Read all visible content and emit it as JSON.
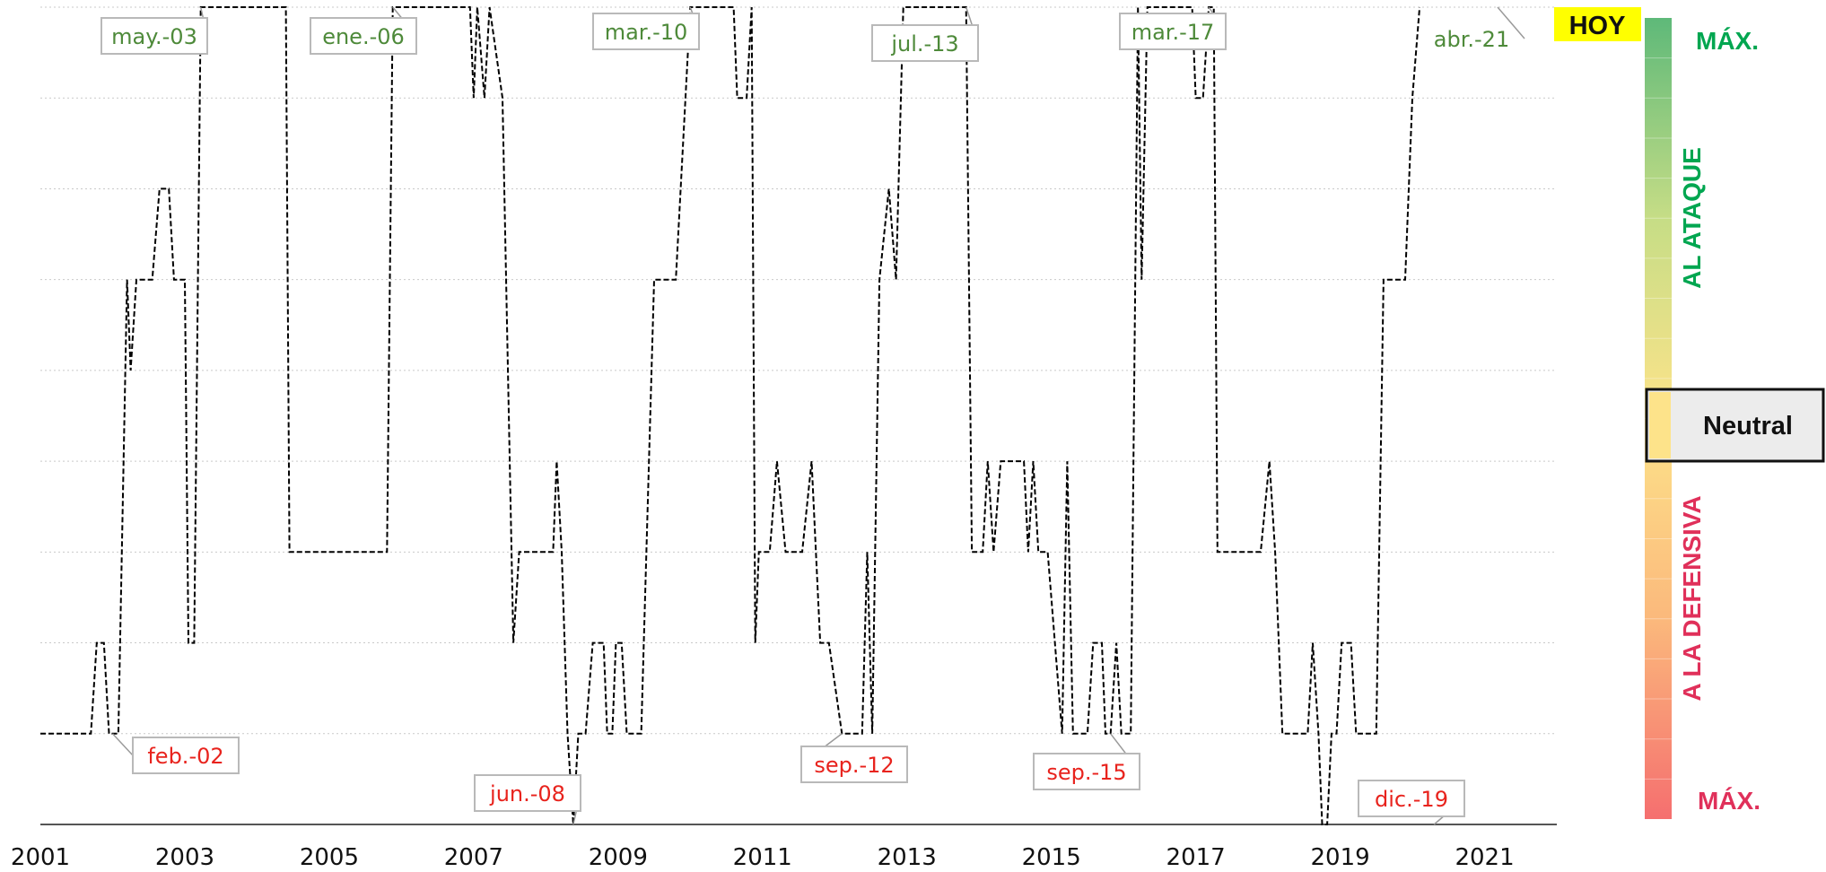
{
  "chart_data": {
    "type": "line",
    "title": "",
    "xlabel": "",
    "ylabel": "",
    "xlim": [
      2001.0,
      2022.0
    ],
    "ylim": [
      0,
      9
    ],
    "x_ticks": [
      "2001",
      "2003",
      "2005",
      "2007",
      "2009",
      "2011",
      "2013",
      "2015",
      "2017",
      "2019",
      "2021"
    ],
    "grid": "horizontal dotted",
    "series": [
      {
        "line_style": "dashed",
        "color": "#000000",
        "points": [
          [
            2001.0,
            1
          ],
          [
            2001.7,
            1
          ],
          [
            2001.78,
            2
          ],
          [
            2001.88,
            2
          ],
          [
            2001.95,
            1
          ],
          [
            2002.08,
            1
          ],
          [
            2002.2,
            6
          ],
          [
            2002.25,
            5
          ],
          [
            2002.33,
            6
          ],
          [
            2002.55,
            6
          ],
          [
            2002.65,
            7
          ],
          [
            2002.78,
            7
          ],
          [
            2002.85,
            6
          ],
          [
            2003.0,
            6
          ],
          [
            2003.05,
            2
          ],
          [
            2003.13,
            2
          ],
          [
            2003.22,
            9
          ],
          [
            2004.4,
            9
          ],
          [
            2004.45,
            3
          ],
          [
            2005.8,
            3
          ],
          [
            2005.88,
            9
          ],
          [
            2006.95,
            9
          ],
          [
            2007.0,
            8
          ],
          [
            2007.05,
            9
          ],
          [
            2007.15,
            8
          ],
          [
            2007.22,
            9
          ],
          [
            2007.4,
            8
          ],
          [
            2007.55,
            2
          ],
          [
            2007.63,
            3
          ],
          [
            2008.1,
            3
          ],
          [
            2008.15,
            4
          ],
          [
            2008.22,
            3
          ],
          [
            2008.3,
            1
          ],
          [
            2008.38,
            0
          ],
          [
            2008.45,
            1
          ],
          [
            2008.55,
            1
          ],
          [
            2008.65,
            2
          ],
          [
            2008.8,
            2
          ],
          [
            2008.85,
            1
          ],
          [
            2008.92,
            1
          ],
          [
            2008.97,
            2
          ],
          [
            2009.05,
            2
          ],
          [
            2009.12,
            1
          ],
          [
            2009.32,
            1
          ],
          [
            2009.5,
            6
          ],
          [
            2009.8,
            6
          ],
          [
            2010.0,
            9
          ],
          [
            2010.6,
            9
          ],
          [
            2010.65,
            8
          ],
          [
            2010.78,
            8
          ],
          [
            2010.85,
            9
          ],
          [
            2010.9,
            2
          ],
          [
            2010.95,
            3
          ],
          [
            2011.1,
            3
          ],
          [
            2011.2,
            4
          ],
          [
            2011.32,
            3
          ],
          [
            2011.55,
            3
          ],
          [
            2011.68,
            4
          ],
          [
            2011.8,
            2
          ],
          [
            2011.92,
            2
          ],
          [
            2012.1,
            1
          ],
          [
            2012.38,
            1
          ],
          [
            2012.45,
            3
          ],
          [
            2012.52,
            1
          ],
          [
            2012.62,
            6
          ],
          [
            2012.75,
            7
          ],
          [
            2012.85,
            6
          ],
          [
            2012.95,
            9
          ],
          [
            2013.82,
            9
          ],
          [
            2013.9,
            3
          ],
          [
            2014.05,
            3
          ],
          [
            2014.12,
            4
          ],
          [
            2014.2,
            3
          ],
          [
            2014.3,
            4
          ],
          [
            2014.62,
            4
          ],
          [
            2014.68,
            3
          ],
          [
            2014.75,
            4
          ],
          [
            2014.82,
            3
          ],
          [
            2014.95,
            3
          ],
          [
            2015.15,
            1
          ],
          [
            2015.22,
            4
          ],
          [
            2015.3,
            1
          ],
          [
            2015.5,
            1
          ],
          [
            2015.58,
            2
          ],
          [
            2015.7,
            2
          ],
          [
            2015.75,
            1
          ],
          [
            2015.82,
            1
          ],
          [
            2015.9,
            2
          ],
          [
            2015.97,
            1
          ],
          [
            2016.1,
            1
          ],
          [
            2016.2,
            9
          ],
          [
            2016.25,
            6
          ],
          [
            2016.33,
            9
          ],
          [
            2016.55,
            9
          ],
          [
            2016.95,
            9
          ],
          [
            2017.0,
            8
          ],
          [
            2017.1,
            8
          ],
          [
            2017.18,
            9
          ],
          [
            2017.25,
            9
          ],
          [
            2017.3,
            3
          ],
          [
            2017.9,
            3
          ],
          [
            2018.02,
            4
          ],
          [
            2018.1,
            3
          ],
          [
            2018.2,
            1
          ],
          [
            2018.55,
            1
          ],
          [
            2018.62,
            2
          ],
          [
            2018.7,
            1
          ],
          [
            2018.75,
            0
          ],
          [
            2018.82,
            0
          ],
          [
            2018.88,
            1
          ],
          [
            2018.95,
            1
          ],
          [
            2019.02,
            2
          ],
          [
            2019.15,
            2
          ],
          [
            2019.22,
            1
          ],
          [
            2019.5,
            1
          ],
          [
            2019.6,
            6
          ],
          [
            2019.9,
            6
          ],
          [
            2020.0,
            8
          ],
          [
            2020.1,
            9
          ]
        ]
      }
    ],
    "peak_labels": [
      "may.-03",
      "ene.-06",
      "mar.-10",
      "jul.-13",
      "mar.-17",
      "abr.-21"
    ],
    "trough_labels": [
      "feb.-02",
      "jun.-08",
      "sep.-12",
      "sep.-15",
      "dic.-19"
    ],
    "label_colors": {
      "peak": "#4e8a3a",
      "trough": "#e8231d"
    },
    "hoy_label": "HOY",
    "hoy_color": "#ffff00",
    "scale": {
      "top_label": "MÁX.",
      "bottom_label": "MÁX.",
      "attack_label": "AL ATAQUE",
      "defense_label": "A LA DEFENSIVA",
      "neutral_label": "Neutral",
      "attack_color": "#00a650",
      "defense_color": "#e0305a",
      "gradient_colors": [
        "#5eb979",
        "#c6dd86",
        "#fde38a",
        "#fbb97c",
        "#f56f6f"
      ]
    }
  }
}
